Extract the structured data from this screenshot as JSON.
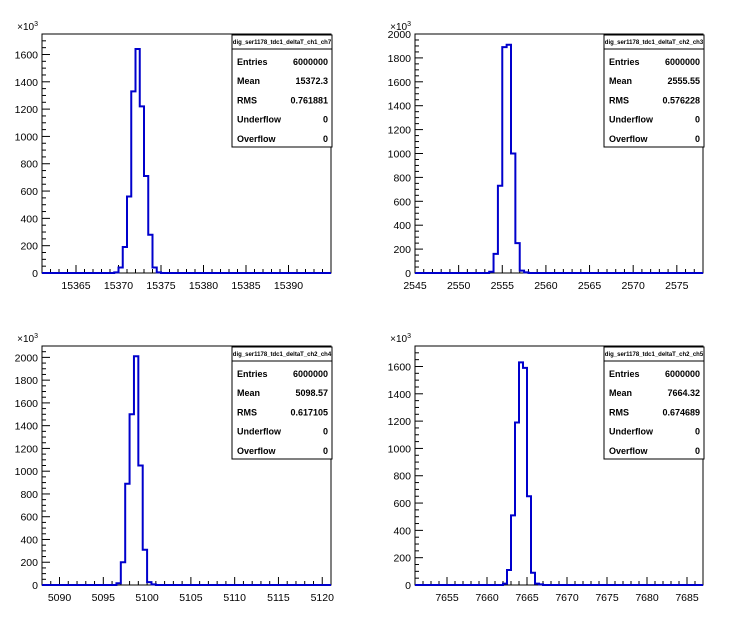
{
  "chart_data": [
    {
      "type": "histogram",
      "stats": {
        "title": "dig_ser1178_tdc1_deltaT_ch1_ch7",
        "rows": [
          {
            "key": "Entries",
            "value": "6000000"
          },
          {
            "key": "Mean",
            "value": "15372.3"
          },
          {
            "key": "RMS",
            "value": "0.761881"
          },
          {
            "key": "Underflow",
            "value": "0"
          },
          {
            "key": "Overflow",
            "value": "0"
          }
        ]
      },
      "exponent_label": "×10",
      "exponent": "3",
      "xlim": [
        15361,
        15395
      ],
      "ylim": [
        0,
        1750
      ],
      "xticks": [
        15365,
        15370,
        15375,
        15380,
        15385,
        15390
      ],
      "xtick_labels": [
        "15365",
        "15370",
        "15375",
        "15380",
        "15385",
        "15390"
      ],
      "yticks": [
        0,
        200,
        400,
        600,
        800,
        1000,
        1200,
        1400,
        1600
      ],
      "ytick_labels": [
        "0",
        "200",
        "400",
        "600",
        "800",
        "1000",
        "1200",
        "1400",
        "1600"
      ],
      "bin_width": 0.5,
      "bins_x": [
        15369.0,
        15369.5,
        15370.0,
        15370.5,
        15371.0,
        15371.5,
        15372.0,
        15372.5,
        15373.0,
        15373.5,
        15374.0,
        15374.5,
        15375.0
      ],
      "bins_y": [
        0,
        5,
        40,
        190,
        560,
        1330,
        1640,
        1220,
        710,
        280,
        40,
        5,
        0
      ]
    },
    {
      "type": "histogram",
      "stats": {
        "title": "dig_ser1178_tdc1_deltaT_ch2_ch3",
        "rows": [
          {
            "key": "Entries",
            "value": "6000000"
          },
          {
            "key": "Mean",
            "value": "2555.55"
          },
          {
            "key": "RMS",
            "value": "0.576228"
          },
          {
            "key": "Underflow",
            "value": "0"
          },
          {
            "key": "Overflow",
            "value": "0"
          }
        ]
      },
      "exponent_label": "×10",
      "exponent": "3",
      "xlim": [
        2545,
        2578
      ],
      "ylim": [
        0,
        2000
      ],
      "xticks": [
        2545,
        2550,
        2555,
        2560,
        2565,
        2570,
        2575
      ],
      "xtick_labels": [
        "2545",
        "2550",
        "2555",
        "2560",
        "2565",
        "2570",
        "2575"
      ],
      "yticks": [
        0,
        200,
        400,
        600,
        800,
        1000,
        1200,
        1400,
        1600,
        1800,
        2000
      ],
      "ytick_labels": [
        "0",
        "200",
        "400",
        "600",
        "800",
        "1000",
        "1200",
        "1400",
        "1600",
        "1800",
        "2000"
      ],
      "bin_width": 0.5,
      "bins_x": [
        2553.0,
        2553.5,
        2554.0,
        2554.5,
        2555.0,
        2555.5,
        2556.0,
        2556.5,
        2557.0,
        2557.5,
        2558.0
      ],
      "bins_y": [
        0,
        10,
        160,
        730,
        1890,
        1910,
        1000,
        250,
        20,
        5,
        0
      ]
    },
    {
      "type": "histogram",
      "stats": {
        "title": "dig_ser1178_tdc1_deltaT_ch2_ch4",
        "rows": [
          {
            "key": "Entries",
            "value": "6000000"
          },
          {
            "key": "Mean",
            "value": "5098.57"
          },
          {
            "key": "RMS",
            "value": "0.617105"
          },
          {
            "key": "Underflow",
            "value": "0"
          },
          {
            "key": "Overflow",
            "value": "0"
          }
        ]
      },
      "exponent_label": "×10",
      "exponent": "3",
      "xlim": [
        5088,
        5121
      ],
      "ylim": [
        0,
        2100
      ],
      "xticks": [
        5090,
        5095,
        5100,
        5105,
        5110,
        5115,
        5120
      ],
      "xtick_labels": [
        "5090",
        "5095",
        "5100",
        "5105",
        "5110",
        "5115",
        "5120"
      ],
      "yticks": [
        0,
        200,
        400,
        600,
        800,
        1000,
        1200,
        1400,
        1600,
        1800,
        2000
      ],
      "ytick_labels": [
        "0",
        "200",
        "400",
        "600",
        "800",
        "1000",
        "1200",
        "1400",
        "1600",
        "1800",
        "2000"
      ],
      "bin_width": 0.5,
      "bins_x": [
        5096.0,
        5096.5,
        5097.0,
        5097.5,
        5098.0,
        5098.5,
        5099.0,
        5099.5,
        5100.0,
        5100.5,
        5101.0
      ],
      "bins_y": [
        0,
        15,
        200,
        890,
        1500,
        2010,
        1050,
        310,
        25,
        5,
        0
      ]
    },
    {
      "type": "histogram",
      "stats": {
        "title": "dig_ser1178_tdc1_deltaT_ch2_ch5",
        "rows": [
          {
            "key": "Entries",
            "value": "6000000"
          },
          {
            "key": "Mean",
            "value": "7664.32"
          },
          {
            "key": "RMS",
            "value": "0.674689"
          },
          {
            "key": "Underflow",
            "value": "0"
          },
          {
            "key": "Overflow",
            "value": "0"
          }
        ]
      },
      "exponent_label": "×10",
      "exponent": "3",
      "xlim": [
        7651,
        7687
      ],
      "ylim": [
        0,
        1750
      ],
      "xticks": [
        7655,
        7660,
        7665,
        7670,
        7675,
        7680,
        7685
      ],
      "xtick_labels": [
        "7655",
        "7660",
        "7665",
        "7670",
        "7675",
        "7680",
        "7685"
      ],
      "yticks": [
        0,
        200,
        400,
        600,
        800,
        1000,
        1200,
        1400,
        1600
      ],
      "ytick_labels": [
        "0",
        "200",
        "400",
        "600",
        "800",
        "1000",
        "1200",
        "1400",
        "1600"
      ],
      "bin_width": 0.5,
      "bins_x": [
        7661.5,
        7662.0,
        7662.5,
        7663.0,
        7663.5,
        7664.0,
        7664.5,
        7665.0,
        7665.5,
        7666.0,
        7666.5,
        7667.0
      ],
      "bins_y": [
        0,
        10,
        110,
        510,
        1190,
        1630,
        1590,
        650,
        90,
        10,
        5,
        0
      ]
    }
  ],
  "colors": {
    "histogram_line": "#0000cc",
    "axis": "#000000",
    "background": "#ffffff"
  }
}
